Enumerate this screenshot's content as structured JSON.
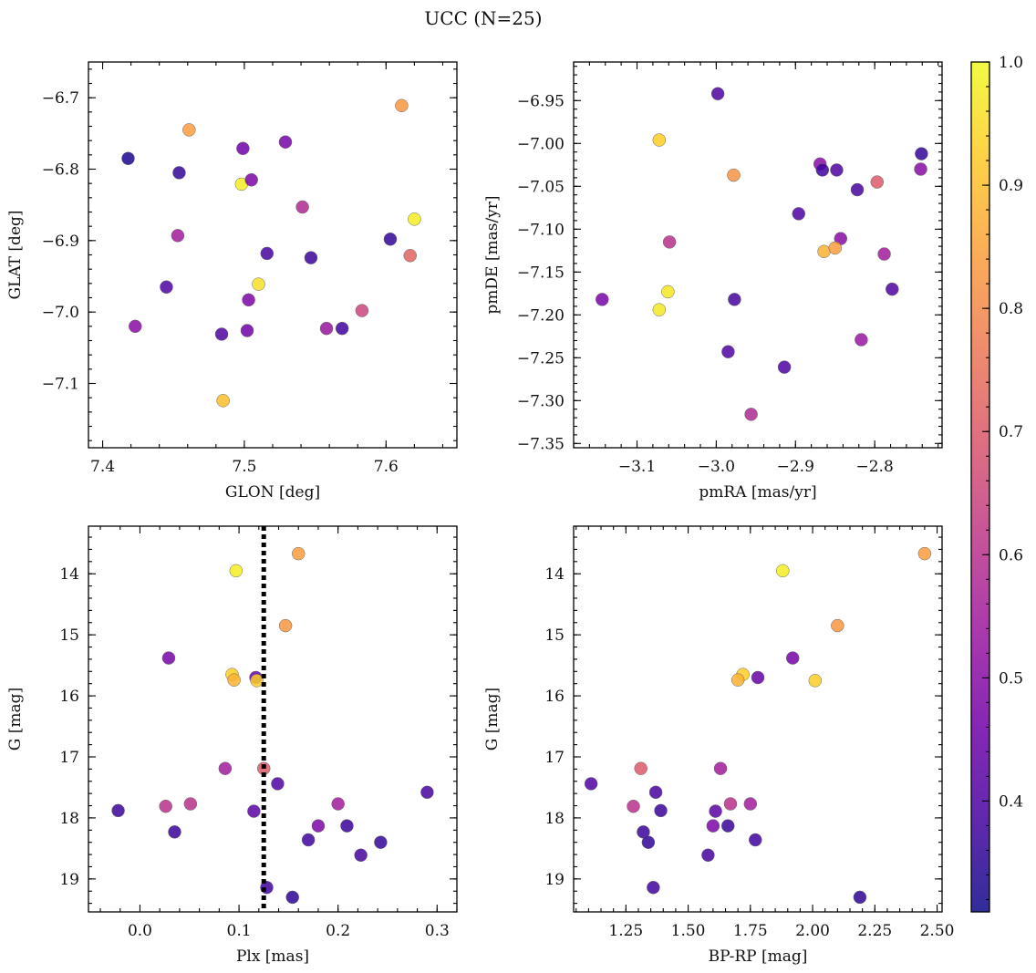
{
  "figure": {
    "title": "UCC (N=25)"
  },
  "chart_data": [
    {
      "id": "glon-glat",
      "type": "scatter",
      "xlabel": "GLON [deg]",
      "ylabel": "GLAT [deg]",
      "xlim": [
        7.39,
        7.65
      ],
      "ylim": [
        -7.19,
        -6.65
      ],
      "y_inverted": false,
      "xticks": [
        7.4,
        7.5,
        7.6
      ],
      "xtick_labels": [
        "7.4",
        "7.5",
        "7.6"
      ],
      "yticks": [
        -6.7,
        -6.8,
        -6.9,
        -7.0,
        -7.1
      ],
      "ytick_labels": [
        "−6.7",
        "−6.8",
        "−6.9",
        "−7.0",
        "−7.1"
      ],
      "minor_x": 0.02,
      "minor_y": 0.02,
      "points": [
        {
          "x": 7.418,
          "y": -6.785,
          "c": 0.33
        },
        {
          "x": 7.454,
          "y": -6.805,
          "c": 0.36
        },
        {
          "x": 7.461,
          "y": -6.745,
          "c": 0.84
        },
        {
          "x": 7.498,
          "y": -6.821,
          "c": 0.98
        },
        {
          "x": 7.499,
          "y": -6.771,
          "c": 0.46
        },
        {
          "x": 7.505,
          "y": -6.815,
          "c": 0.48
        },
        {
          "x": 7.529,
          "y": -6.762,
          "c": 0.47
        },
        {
          "x": 7.541,
          "y": -6.853,
          "c": 0.58
        },
        {
          "x": 7.611,
          "y": -6.711,
          "c": 0.83
        },
        {
          "x": 7.62,
          "y": -6.87,
          "c": 0.98
        },
        {
          "x": 7.453,
          "y": -6.893,
          "c": 0.55
        },
        {
          "x": 7.516,
          "y": -6.918,
          "c": 0.39
        },
        {
          "x": 7.547,
          "y": -6.924,
          "c": 0.37
        },
        {
          "x": 7.603,
          "y": -6.898,
          "c": 0.36
        },
        {
          "x": 7.617,
          "y": -6.921,
          "c": 0.72
        },
        {
          "x": 7.445,
          "y": -6.965,
          "c": 0.4
        },
        {
          "x": 7.51,
          "y": -6.961,
          "c": 0.96
        },
        {
          "x": 7.503,
          "y": -6.983,
          "c": 0.48
        },
        {
          "x": 7.583,
          "y": -6.998,
          "c": 0.65
        },
        {
          "x": 7.423,
          "y": -7.02,
          "c": 0.5
        },
        {
          "x": 7.484,
          "y": -7.031,
          "c": 0.4
        },
        {
          "x": 7.502,
          "y": -7.026,
          "c": 0.46
        },
        {
          "x": 7.558,
          "y": -7.023,
          "c": 0.53
        },
        {
          "x": 7.569,
          "y": -7.023,
          "c": 0.38
        },
        {
          "x": 7.485,
          "y": -7.124,
          "c": 0.9
        }
      ]
    },
    {
      "id": "pmra-pmde",
      "type": "scatter",
      "xlabel": "pmRA [mas/yr]",
      "ylabel": "pmDE [mas/yr]",
      "xlim": [
        -3.18,
        -2.715
      ],
      "ylim": [
        -7.355,
        -6.905
      ],
      "y_inverted": false,
      "xticks": [
        -3.1,
        -3.0,
        -2.9,
        -2.8
      ],
      "xtick_labels": [
        "−3.1",
        "−3.0",
        "−2.9",
        "−2.8"
      ],
      "yticks": [
        -6.95,
        -7.0,
        -7.05,
        -7.1,
        -7.15,
        -7.2,
        -7.25,
        -7.3,
        -7.35
      ],
      "ytick_labels": [
        "−6.95",
        "−7.00",
        "−7.05",
        "−7.10",
        "−7.15",
        "−7.20",
        "−7.25",
        "−7.30",
        "−7.35"
      ],
      "minor_x": 0.02,
      "minor_y": 0.01,
      "points": [
        {
          "x": -2.998,
          "y": -6.942,
          "c": 0.4
        },
        {
          "x": -3.072,
          "y": -6.996,
          "c": 0.93
        },
        {
          "x": -2.741,
          "y": -7.012,
          "c": 0.36
        },
        {
          "x": -2.869,
          "y": -7.024,
          "c": 0.5
        },
        {
          "x": -2.742,
          "y": -7.03,
          "c": 0.5
        },
        {
          "x": -2.866,
          "y": -7.031,
          "c": 0.38
        },
        {
          "x": -2.848,
          "y": -7.031,
          "c": 0.4
        },
        {
          "x": -2.978,
          "y": -7.037,
          "c": 0.82
        },
        {
          "x": -2.797,
          "y": -7.045,
          "c": 0.7
        },
        {
          "x": -2.822,
          "y": -7.054,
          "c": 0.39
        },
        {
          "x": -2.896,
          "y": -7.082,
          "c": 0.4
        },
        {
          "x": -3.059,
          "y": -7.115,
          "c": 0.6
        },
        {
          "x": -2.843,
          "y": -7.111,
          "c": 0.5
        },
        {
          "x": -2.864,
          "y": -7.126,
          "c": 0.88
        },
        {
          "x": -2.85,
          "y": -7.122,
          "c": 0.84
        },
        {
          "x": -2.788,
          "y": -7.129,
          "c": 0.55
        },
        {
          "x": -2.778,
          "y": -7.17,
          "c": 0.4
        },
        {
          "x": -3.061,
          "y": -7.173,
          "c": 0.97
        },
        {
          "x": -3.144,
          "y": -7.182,
          "c": 0.47
        },
        {
          "x": -2.977,
          "y": -7.182,
          "c": 0.39
        },
        {
          "x": -3.072,
          "y": -7.194,
          "c": 0.97
        },
        {
          "x": -2.817,
          "y": -7.229,
          "c": 0.53
        },
        {
          "x": -2.985,
          "y": -7.243,
          "c": 0.4
        },
        {
          "x": -2.914,
          "y": -7.261,
          "c": 0.4
        },
        {
          "x": -2.956,
          "y": -7.316,
          "c": 0.58
        }
      ]
    },
    {
      "id": "plx-g",
      "type": "scatter",
      "xlabel": "Plx [mas]",
      "ylabel": "G [mag]",
      "xlim": [
        -0.052,
        0.32
      ],
      "ylim": [
        19.54,
        13.22
      ],
      "y_inverted": true,
      "xticks": [
        0.0,
        0.1,
        0.2,
        0.3
      ],
      "xtick_labels": [
        "0.0",
        "0.1",
        "0.2",
        "0.3"
      ],
      "yticks": [
        14,
        15,
        16,
        17,
        18,
        19
      ],
      "ytick_labels": [
        "14",
        "15",
        "16",
        "17",
        "18",
        "19"
      ],
      "minor_x": 0.02,
      "minor_y": 0.2,
      "vline": {
        "x": 0.125,
        "style": "dotted"
      },
      "points": [
        {
          "x": 0.16,
          "y": 13.67,
          "c": 0.84
        },
        {
          "x": 0.097,
          "y": 13.95,
          "c": 0.98
        },
        {
          "x": 0.147,
          "y": 14.85,
          "c": 0.83
        },
        {
          "x": 0.029,
          "y": 15.38,
          "c": 0.47
        },
        {
          "x": 0.093,
          "y": 15.65,
          "c": 0.93
        },
        {
          "x": 0.095,
          "y": 15.74,
          "c": 0.88
        },
        {
          "x": 0.117,
          "y": 15.7,
          "c": 0.44
        },
        {
          "x": 0.118,
          "y": 15.75,
          "c": 0.93
        },
        {
          "x": 0.086,
          "y": 17.19,
          "c": 0.55
        },
        {
          "x": 0.125,
          "y": 17.19,
          "c": 0.7
        },
        {
          "x": 0.139,
          "y": 17.44,
          "c": 0.4
        },
        {
          "x": 0.29,
          "y": 17.58,
          "c": 0.39
        },
        {
          "x": 0.026,
          "y": 17.81,
          "c": 0.6
        },
        {
          "x": 0.051,
          "y": 17.77,
          "c": 0.6
        },
        {
          "x": 0.2,
          "y": 17.77,
          "c": 0.55
        },
        {
          "x": -0.022,
          "y": 17.88,
          "c": 0.37
        },
        {
          "x": 0.115,
          "y": 17.89,
          "c": 0.42
        },
        {
          "x": 0.18,
          "y": 18.13,
          "c": 0.48
        },
        {
          "x": 0.209,
          "y": 18.13,
          "c": 0.37
        },
        {
          "x": 0.035,
          "y": 18.23,
          "c": 0.37
        },
        {
          "x": 0.17,
          "y": 18.36,
          "c": 0.38
        },
        {
          "x": 0.243,
          "y": 18.4,
          "c": 0.36
        },
        {
          "x": 0.223,
          "y": 18.61,
          "c": 0.39
        },
        {
          "x": 0.128,
          "y": 19.14,
          "c": 0.38
        },
        {
          "x": 0.154,
          "y": 19.3,
          "c": 0.35
        }
      ]
    },
    {
      "id": "bprp-g",
      "type": "scatter",
      "xlabel": "BP-RP [mag]",
      "ylabel": "G [mag]",
      "xlim": [
        1.04,
        2.52
      ],
      "ylim": [
        19.54,
        13.22
      ],
      "y_inverted": true,
      "xticks": [
        1.25,
        1.5,
        1.75,
        2.0,
        2.25,
        2.5
      ],
      "xtick_labels": [
        "1.25",
        "1.50",
        "1.75",
        "2.00",
        "2.25",
        "2.50"
      ],
      "yticks": [
        14,
        15,
        16,
        17,
        18,
        19
      ],
      "ytick_labels": [
        "14",
        "15",
        "16",
        "17",
        "18",
        "19"
      ],
      "minor_x": 0.05,
      "minor_y": 0.2,
      "points": [
        {
          "x": 2.45,
          "y": 13.67,
          "c": 0.84
        },
        {
          "x": 1.88,
          "y": 13.95,
          "c": 0.98
        },
        {
          "x": 2.1,
          "y": 14.85,
          "c": 0.83
        },
        {
          "x": 1.92,
          "y": 15.38,
          "c": 0.47
        },
        {
          "x": 1.72,
          "y": 15.65,
          "c": 0.93
        },
        {
          "x": 1.7,
          "y": 15.74,
          "c": 0.88
        },
        {
          "x": 1.78,
          "y": 15.7,
          "c": 0.44
        },
        {
          "x": 2.01,
          "y": 15.75,
          "c": 0.93
        },
        {
          "x": 1.31,
          "y": 17.19,
          "c": 0.7
        },
        {
          "x": 1.63,
          "y": 17.19,
          "c": 0.55
        },
        {
          "x": 1.11,
          "y": 17.44,
          "c": 0.4
        },
        {
          "x": 1.37,
          "y": 17.58,
          "c": 0.39
        },
        {
          "x": 1.28,
          "y": 17.81,
          "c": 0.6
        },
        {
          "x": 1.67,
          "y": 17.77,
          "c": 0.6
        },
        {
          "x": 1.75,
          "y": 17.77,
          "c": 0.55
        },
        {
          "x": 1.39,
          "y": 17.88,
          "c": 0.37
        },
        {
          "x": 1.61,
          "y": 17.89,
          "c": 0.42
        },
        {
          "x": 1.6,
          "y": 18.13,
          "c": 0.48
        },
        {
          "x": 1.66,
          "y": 18.13,
          "c": 0.37
        },
        {
          "x": 1.32,
          "y": 18.23,
          "c": 0.37
        },
        {
          "x": 1.77,
          "y": 18.36,
          "c": 0.38
        },
        {
          "x": 1.34,
          "y": 18.4,
          "c": 0.36
        },
        {
          "x": 1.58,
          "y": 18.61,
          "c": 0.39
        },
        {
          "x": 1.36,
          "y": 19.14,
          "c": 0.38
        },
        {
          "x": 2.19,
          "y": 19.3,
          "c": 0.35
        }
      ]
    }
  ],
  "colorbar": {
    "colormap": "plasma",
    "vmin": 0.31,
    "vmax": 1.0,
    "ticks": [
      0.4,
      0.5,
      0.6,
      0.7,
      0.8,
      0.9,
      1.0
    ],
    "tick_labels": [
      "0.4",
      "0.5",
      "0.6",
      "0.7",
      "0.8",
      "0.9",
      "1.0"
    ],
    "minor_step": 0.02
  },
  "colors": {
    "plasma_stops": [
      "#0d0887",
      "#46039f",
      "#7201a8",
      "#9c179e",
      "#bd3786",
      "#d8576b",
      "#ed7953",
      "#fb9f3a",
      "#fdca26",
      "#f0f921"
    ]
  }
}
